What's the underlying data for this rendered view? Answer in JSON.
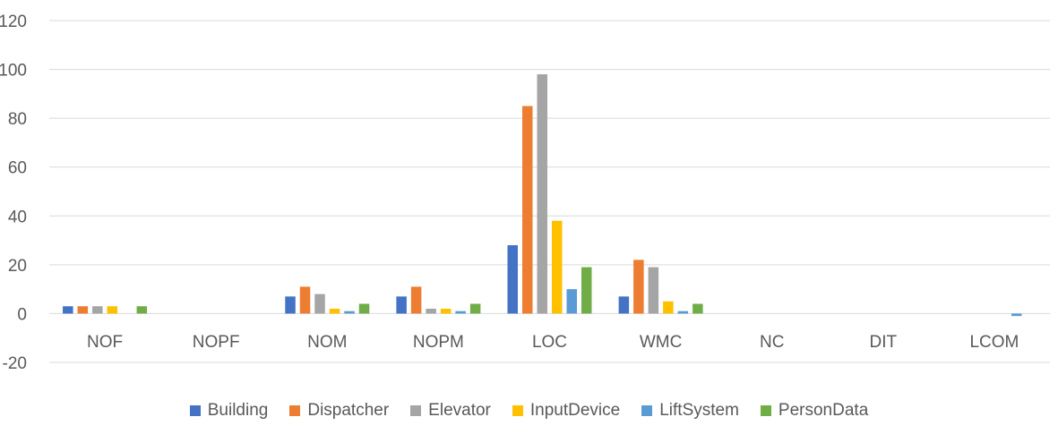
{
  "chart_data": {
    "type": "bar",
    "categories": [
      "NOF",
      "NOPF",
      "NOM",
      "NOPM",
      "LOC",
      "WMC",
      "NC",
      "DIT",
      "LCOM"
    ],
    "series": [
      {
        "name": "Building",
        "color": "#4472C4",
        "values": [
          3,
          0,
          7,
          7,
          28,
          7,
          0,
          0,
          0
        ]
      },
      {
        "name": "Dispatcher",
        "color": "#ED7D31",
        "values": [
          3,
          0,
          11,
          11,
          85,
          22,
          0,
          0,
          0
        ]
      },
      {
        "name": "Elevator",
        "color": "#A5A5A5",
        "values": [
          3,
          0,
          8,
          2,
          98,
          19,
          0,
          0,
          0
        ]
      },
      {
        "name": "InputDevice",
        "color": "#FFC000",
        "values": [
          3,
          0,
          2,
          2,
          38,
          5,
          0,
          0,
          0
        ]
      },
      {
        "name": "LiftSystem",
        "color": "#5B9BD5",
        "values": [
          0,
          0,
          1,
          1,
          10,
          1,
          0,
          0,
          -1
        ]
      },
      {
        "name": "PersonData",
        "color": "#70AD47",
        "values": [
          3,
          0,
          4,
          4,
          19,
          4,
          0,
          0,
          0
        ]
      }
    ],
    "yticks": [
      -20,
      0,
      20,
      40,
      60,
      80,
      100,
      120
    ],
    "ylim": [
      -20,
      120
    ],
    "grid": true,
    "legend": "bottom"
  }
}
